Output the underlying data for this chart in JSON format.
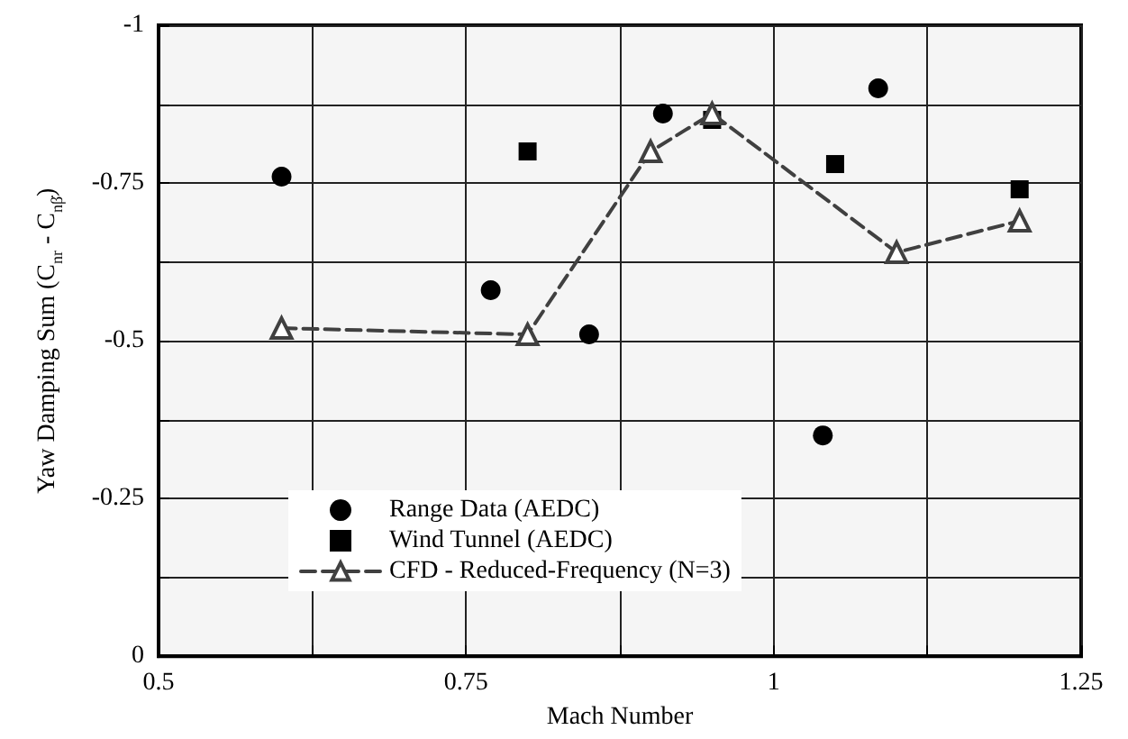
{
  "chart_data": {
    "type": "scatter",
    "xlabel": "Mach Number",
    "ylabel": "Yaw Damping Sum (C$_{nr}$ - C$_{nβ̇}$)",
    "xlim": [
      0.5,
      1.25
    ],
    "xticks": [
      0.5,
      {
        "value": 0.625,
        "label": null
      },
      0.75,
      {
        "value": 0.875,
        "label": null
      },
      1,
      {
        "value": 1.125,
        "label": null
      },
      1.25
    ],
    "ylim": [
      0,
      -1
    ],
    "yticks": [
      0,
      {
        "value": -0.125,
        "label": null
      },
      -0.25,
      {
        "value": -0.375,
        "label": null
      },
      -0.5,
      {
        "value": -0.625,
        "label": null
      },
      -0.75,
      {
        "value": -0.875,
        "label": null
      },
      -1
    ],
    "grid": true,
    "legend": "bottom left",
    "series": [
      {
        "name": "Range Data (AEDC)",
        "marker": "circle",
        "color": "#000000",
        "x": [
          0.6,
          0.77,
          0.85,
          0.91,
          1.04,
          1.085
        ],
        "values": [
          -0.76,
          -0.58,
          -0.51,
          -0.86,
          -0.35,
          -0.9
        ]
      },
      {
        "name": "Wind Tunnel (AEDC)",
        "marker": "square",
        "color": "#000000",
        "x": [
          0.8,
          0.95,
          1.05,
          1.2
        ],
        "values": [
          -0.8,
          -0.85,
          -0.78,
          -0.74
        ]
      },
      {
        "name": "CFD - Reduced-Frequency (N=3)",
        "type": "line",
        "marker": "triangle",
        "line_style": "dashed",
        "color": "#404040",
        "x": [
          0.6,
          0.8,
          0.9,
          0.95,
          1.1,
          1.2
        ],
        "values": [
          -0.52,
          -0.51,
          -0.8,
          -0.86,
          -0.64,
          -0.69
        ]
      }
    ]
  }
}
